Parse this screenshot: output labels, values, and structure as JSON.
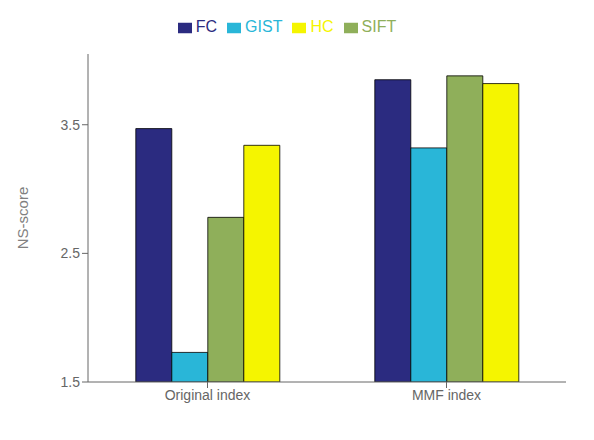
{
  "chart_data": {
    "type": "bar",
    "categories": [
      "Original index",
      "MMF index"
    ],
    "series": [
      {
        "name": "FC",
        "color": "#2b2b80",
        "values": [
          3.47,
          3.85
        ]
      },
      {
        "name": "GIST",
        "color": "#29b6d8",
        "values": [
          1.73,
          3.32
        ]
      },
      {
        "name": "SIFT",
        "color": "#8faf5a",
        "values": [
          2.78,
          3.88
        ]
      },
      {
        "name": "HC",
        "color": "#f5f500",
        "values": [
          3.34,
          3.82
        ]
      }
    ],
    "ylabel": "NS-score",
    "ylim": [
      1.5,
      4.05
    ],
    "yticks": [
      1.5,
      2.5,
      3.5
    ],
    "grid": false,
    "legend": "top"
  }
}
